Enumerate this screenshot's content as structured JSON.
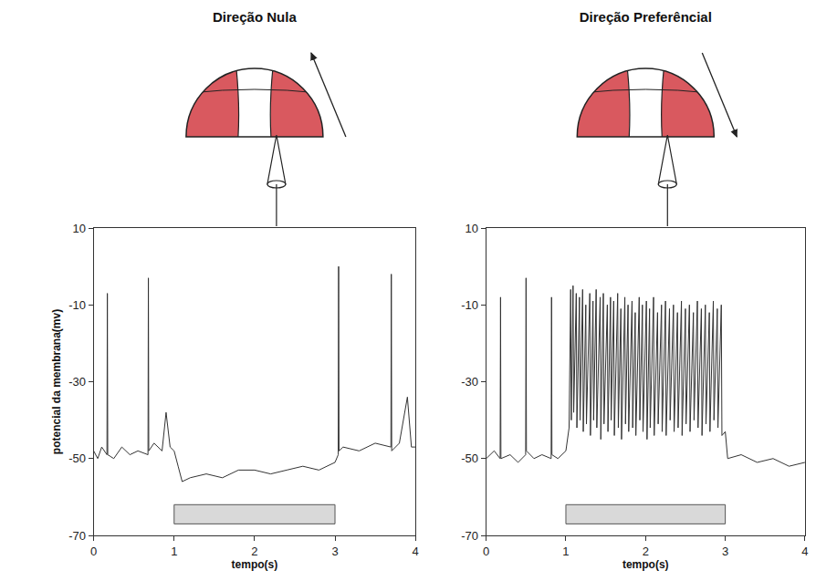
{
  "chart_data": [
    {
      "type": "line",
      "title": "Direção Nula",
      "x_label": "tempo(s)",
      "y_label": "potencial da membrana(mv)",
      "color": "#333333",
      "x": [
        0,
        0.05,
        0.1,
        0.165,
        0.17,
        0.175,
        0.25,
        0.35,
        0.45,
        0.55,
        0.675,
        0.68,
        0.685,
        0.75,
        0.85,
        0.9,
        0.95,
        1.0,
        1.05,
        1.1,
        1.2,
        1.4,
        1.6,
        1.8,
        2.0,
        2.2,
        2.4,
        2.6,
        2.8,
        3.0,
        3.04,
        3.045,
        3.05,
        3.1,
        3.3,
        3.5,
        3.695,
        3.7,
        3.705,
        3.8,
        3.9,
        3.95,
        4.0
      ],
      "values": [
        -48,
        -50,
        -47,
        -49,
        -7,
        -49,
        -50,
        -47,
        -49,
        -48,
        -49,
        -3,
        -48,
        -46,
        -48,
        -38,
        -47,
        -48,
        -52,
        -56,
        -55,
        -54,
        -55,
        -53,
        -53,
        -54,
        -53,
        -52,
        -53,
        -51,
        -49,
        0,
        -48,
        -47,
        -48,
        -46,
        -47,
        -2,
        -48,
        -46,
        -34,
        -47,
        -47
      ],
      "stimulus": {
        "x": [
          1,
          3
        ],
        "y": [
          -67,
          -62
        ],
        "color": "#d9d9d9"
      },
      "xlim": [
        0,
        4
      ],
      "ylim": [
        -70,
        10
      ],
      "xticks": [
        0,
        1,
        2,
        3,
        4
      ],
      "yticks": [
        -70,
        -50,
        -30,
        -10,
        10
      ],
      "grid": false
    },
    {
      "type": "line",
      "title": "Direção Preferêncial",
      "x_label": "tempo(s)",
      "color": "#333333",
      "x": [
        0,
        0.1,
        0.175,
        0.18,
        0.185,
        0.3,
        0.4,
        0.495,
        0.5,
        0.505,
        0.6,
        0.7,
        0.815,
        0.82,
        0.825,
        0.9,
        1.0,
        1.04,
        1.06,
        1.068,
        1.09,
        1.098,
        1.13,
        1.138,
        1.17,
        1.178,
        1.21,
        1.218,
        1.25,
        1.258,
        1.3,
        1.308,
        1.34,
        1.348,
        1.38,
        1.388,
        1.43,
        1.438,
        1.47,
        1.478,
        1.52,
        1.528,
        1.56,
        1.568,
        1.6,
        1.608,
        1.65,
        1.658,
        1.69,
        1.698,
        1.74,
        1.748,
        1.78,
        1.788,
        1.83,
        1.838,
        1.87,
        1.878,
        1.92,
        1.928,
        1.96,
        1.968,
        2.01,
        2.018,
        2.05,
        2.058,
        2.1,
        2.108,
        2.15,
        2.158,
        2.2,
        2.208,
        2.25,
        2.258,
        2.3,
        2.308,
        2.35,
        2.358,
        2.4,
        2.408,
        2.45,
        2.458,
        2.5,
        2.508,
        2.55,
        2.558,
        2.6,
        2.608,
        2.65,
        2.658,
        2.7,
        2.708,
        2.75,
        2.758,
        2.8,
        2.808,
        2.85,
        2.858,
        2.9,
        2.908,
        2.95,
        2.958,
        3.0,
        3.03,
        3.2,
        3.4,
        3.6,
        3.8,
        4.0
      ],
      "values": [
        -50,
        -48,
        -50,
        -8,
        -50,
        -49,
        -51,
        -49,
        -3,
        -48,
        -50,
        -49,
        -50,
        -8,
        -49,
        -50,
        -48,
        -42,
        -6,
        -40,
        -5,
        -38,
        -7,
        -42,
        -8,
        -40,
        -6,
        -43,
        -10,
        -41,
        -7,
        -44,
        -9,
        -40,
        -6,
        -42,
        -8,
        -45,
        -7,
        -41,
        -10,
        -43,
        -8,
        -40,
        -9,
        -44,
        -7,
        -42,
        -11,
        -45,
        -8,
        -41,
        -10,
        -43,
        -9,
        -42,
        -12,
        -44,
        -8,
        -40,
        -10,
        -43,
        -9,
        -45,
        -11,
        -42,
        -8,
        -44,
        -12,
        -41,
        -10,
        -43,
        -9,
        -44,
        -11,
        -40,
        -10,
        -43,
        -12,
        -42,
        -9,
        -44,
        -11,
        -41,
        -10,
        -43,
        -12,
        -40,
        -9,
        -42,
        -11,
        -44,
        -10,
        -41,
        -12,
        -43,
        -9,
        -40,
        -11,
        -42,
        -10,
        -44,
        -43,
        -50,
        -49,
        -51,
        -50,
        -52,
        -51
      ],
      "stimulus": {
        "x": [
          1,
          3
        ],
        "y": [
          -67,
          -62
        ],
        "color": "#d9d9d9"
      },
      "xlim": [
        0,
        4
      ],
      "ylim": [
        -70,
        10
      ],
      "xticks": [
        0,
        1,
        2,
        3,
        4
      ],
      "yticks": [
        -70,
        -50,
        -30,
        -10,
        10
      ],
      "grid": false
    }
  ]
}
